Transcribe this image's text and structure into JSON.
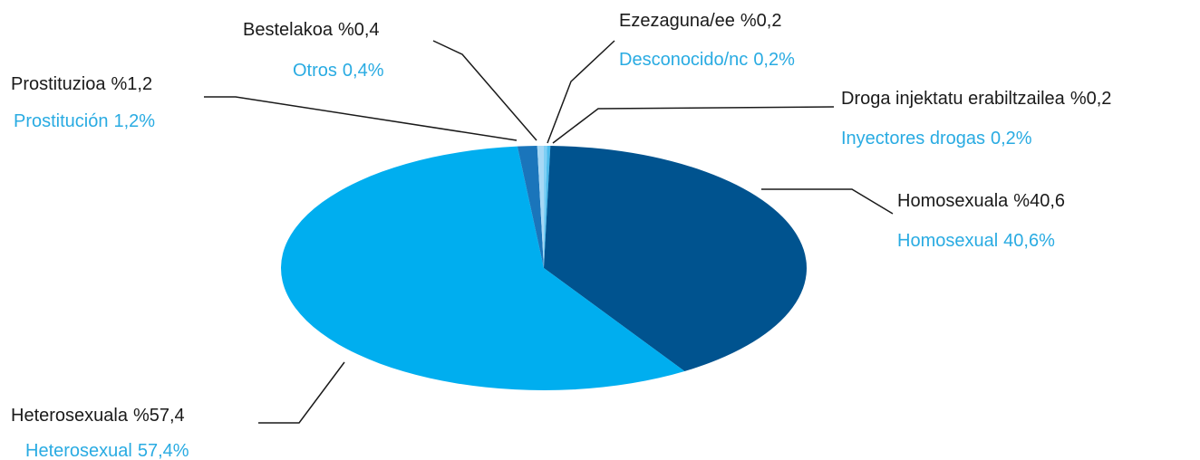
{
  "chart_data": {
    "type": "pie",
    "categories": [
      "Ezezaguna/ee",
      "Droga injektatu erabiltzailea",
      "Homosexuala",
      "Heterosexuala",
      "Prostituzioa",
      "Bestelakoa"
    ],
    "value_labels": [
      "%0,2",
      "%0,2",
      "%40,6",
      "%57,4",
      "%1,2",
      "%0,4"
    ],
    "categories_es": [
      "Desconocido/nc",
      "Inyectores drogas",
      "Homosexual",
      "Heterosexual",
      "Prostitución",
      "Otros"
    ],
    "value_labels_es": [
      "0,2%",
      "0,2%",
      "40,6%",
      "57,4%",
      "1,2%",
      "0,4%"
    ],
    "values": [
      0.2,
      0.2,
      40.6,
      57.4,
      1.2,
      0.4
    ],
    "colors": [
      "#7fcff5",
      "#4cbbeb",
      "#00538f",
      "#00aeef",
      "#1a75bb",
      "#a7d8f5"
    ]
  }
}
